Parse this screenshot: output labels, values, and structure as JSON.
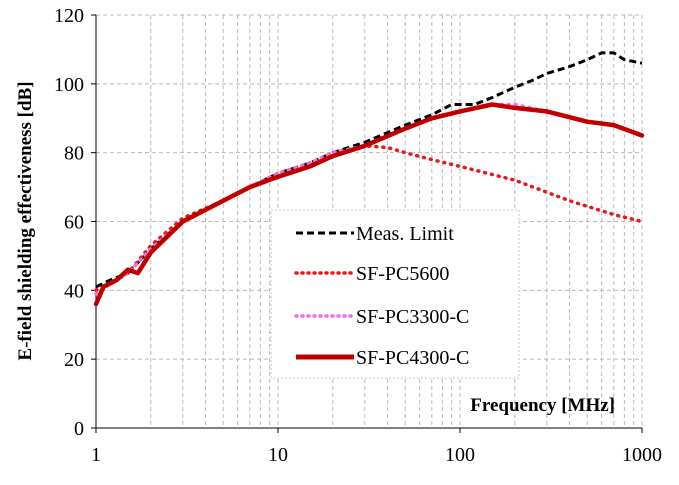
{
  "chart_data": {
    "type": "line",
    "title": "",
    "xlabel": "Frequency [MHz]",
    "ylabel": "E-field shielding effectiveness [dB]",
    "xscale": "log",
    "xlim": [
      1,
      1000
    ],
    "ylim": [
      0,
      120
    ],
    "x_ticks": [
      1,
      10,
      100,
      1000
    ],
    "x_tick_labels": [
      "1",
      "10",
      "100",
      "1000"
    ],
    "y_ticks": [
      0,
      20,
      40,
      60,
      80,
      100,
      120
    ],
    "y_tick_labels": [
      "0",
      "20",
      "40",
      "60",
      "80",
      "100",
      "120"
    ],
    "grid": true,
    "legend_position": "center",
    "series": [
      {
        "name": "Meas. Limit",
        "color": "#000000",
        "style": "dashed",
        "points": [
          [
            1,
            41
          ],
          [
            1.2,
            43
          ],
          [
            1.5,
            45
          ],
          [
            2,
            52
          ],
          [
            3,
            60
          ],
          [
            5,
            66
          ],
          [
            7,
            70
          ],
          [
            10,
            74
          ],
          [
            15,
            77
          ],
          [
            20,
            80
          ],
          [
            30,
            83
          ],
          [
            50,
            88
          ],
          [
            70,
            91
          ],
          [
            90,
            94
          ],
          [
            120,
            94
          ],
          [
            150,
            96
          ],
          [
            200,
            99
          ],
          [
            250,
            101
          ],
          [
            300,
            103
          ],
          [
            400,
            105
          ],
          [
            500,
            107
          ],
          [
            600,
            109
          ],
          [
            700,
            109
          ],
          [
            800,
            107
          ],
          [
            1000,
            106
          ]
        ]
      },
      {
        "name": "SF-PC5600",
        "color": "#e8191c",
        "style": "dotted",
        "points": [
          [
            1,
            40
          ],
          [
            1.2,
            42
          ],
          [
            1.5,
            45
          ],
          [
            2,
            53
          ],
          [
            3,
            61
          ],
          [
            5,
            66
          ],
          [
            7,
            70
          ],
          [
            10,
            74
          ],
          [
            15,
            77
          ],
          [
            20,
            80
          ],
          [
            30,
            82
          ],
          [
            40,
            81.5
          ],
          [
            50,
            80
          ],
          [
            70,
            78
          ],
          [
            100,
            76
          ],
          [
            200,
            72
          ],
          [
            400,
            66
          ],
          [
            700,
            62
          ],
          [
            1000,
            60
          ]
        ]
      },
      {
        "name": "SF-PC3300-C",
        "color": "#ee6ee8",
        "style": "dotted",
        "points": [
          [
            1,
            39
          ],
          [
            1.2,
            42
          ],
          [
            1.5,
            45
          ],
          [
            2,
            52
          ],
          [
            3,
            60
          ],
          [
            5,
            66
          ],
          [
            7,
            70
          ],
          [
            10,
            74
          ],
          [
            15,
            77
          ],
          [
            20,
            80
          ],
          [
            30,
            82
          ],
          [
            50,
            87
          ],
          [
            70,
            90
          ],
          [
            100,
            92
          ],
          [
            150,
            94
          ],
          [
            200,
            94
          ],
          [
            300,
            92
          ],
          [
            500,
            89
          ],
          [
            700,
            88
          ],
          [
            1000,
            85
          ]
        ]
      },
      {
        "name": "SF-PC4300-C",
        "color": "#c00000",
        "style": "solid",
        "points": [
          [
            1,
            36
          ],
          [
            1.1,
            41
          ],
          [
            1.3,
            43
          ],
          [
            1.5,
            46
          ],
          [
            1.7,
            45
          ],
          [
            2,
            51
          ],
          [
            3,
            60
          ],
          [
            5,
            66
          ],
          [
            7,
            70
          ],
          [
            10,
            73
          ],
          [
            15,
            76
          ],
          [
            20,
            79
          ],
          [
            30,
            82
          ],
          [
            50,
            87
          ],
          [
            70,
            90
          ],
          [
            100,
            92
          ],
          [
            150,
            94
          ],
          [
            200,
            93
          ],
          [
            300,
            92
          ],
          [
            500,
            89
          ],
          [
            700,
            88
          ],
          [
            1000,
            85
          ]
        ]
      }
    ]
  }
}
